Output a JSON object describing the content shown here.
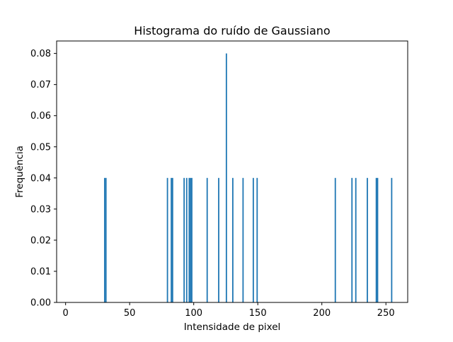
{
  "chart_data": {
    "type": "bar",
    "title": "Histograma do ruído de Gaussiano",
    "xlabel": "Intensidade de pixel",
    "ylabel": "Frequência",
    "xlim": [
      -7,
      267
    ],
    "ylim": [
      0,
      0.084
    ],
    "xticks": [
      0,
      50,
      100,
      150,
      200,
      250
    ],
    "xtick_labels": [
      "0",
      "50",
      "100",
      "150",
      "200",
      "250"
    ],
    "yticks": [
      0.0,
      0.01,
      0.02,
      0.03,
      0.04,
      0.05,
      0.06,
      0.07,
      0.08
    ],
    "ytick_labels": [
      "0.00",
      "0.01",
      "0.02",
      "0.03",
      "0.04",
      "0.05",
      "0.06",
      "0.07",
      "0.08"
    ],
    "bar_color": "#1f77b4",
    "bin_width": 1,
    "grid": false,
    "legend": "none",
    "bins": [
      {
        "x": 30,
        "value": 0.04
      },
      {
        "x": 31,
        "value": 0.04
      },
      {
        "x": 79,
        "value": 0.04
      },
      {
        "x": 82,
        "value": 0.04
      },
      {
        "x": 83,
        "value": 0.04
      },
      {
        "x": 92,
        "value": 0.04
      },
      {
        "x": 94,
        "value": 0.04
      },
      {
        "x": 96,
        "value": 0.04
      },
      {
        "x": 97,
        "value": 0.04
      },
      {
        "x": 98,
        "value": 0.04
      },
      {
        "x": 110,
        "value": 0.04
      },
      {
        "x": 119,
        "value": 0.04
      },
      {
        "x": 125,
        "value": 0.08
      },
      {
        "x": 130,
        "value": 0.04
      },
      {
        "x": 138,
        "value": 0.04
      },
      {
        "x": 146,
        "value": 0.04
      },
      {
        "x": 149,
        "value": 0.04
      },
      {
        "x": 210,
        "value": 0.04
      },
      {
        "x": 223,
        "value": 0.04
      },
      {
        "x": 226,
        "value": 0.04
      },
      {
        "x": 235,
        "value": 0.04
      },
      {
        "x": 242,
        "value": 0.04
      },
      {
        "x": 243,
        "value": 0.04
      },
      {
        "x": 254,
        "value": 0.04
      }
    ]
  }
}
